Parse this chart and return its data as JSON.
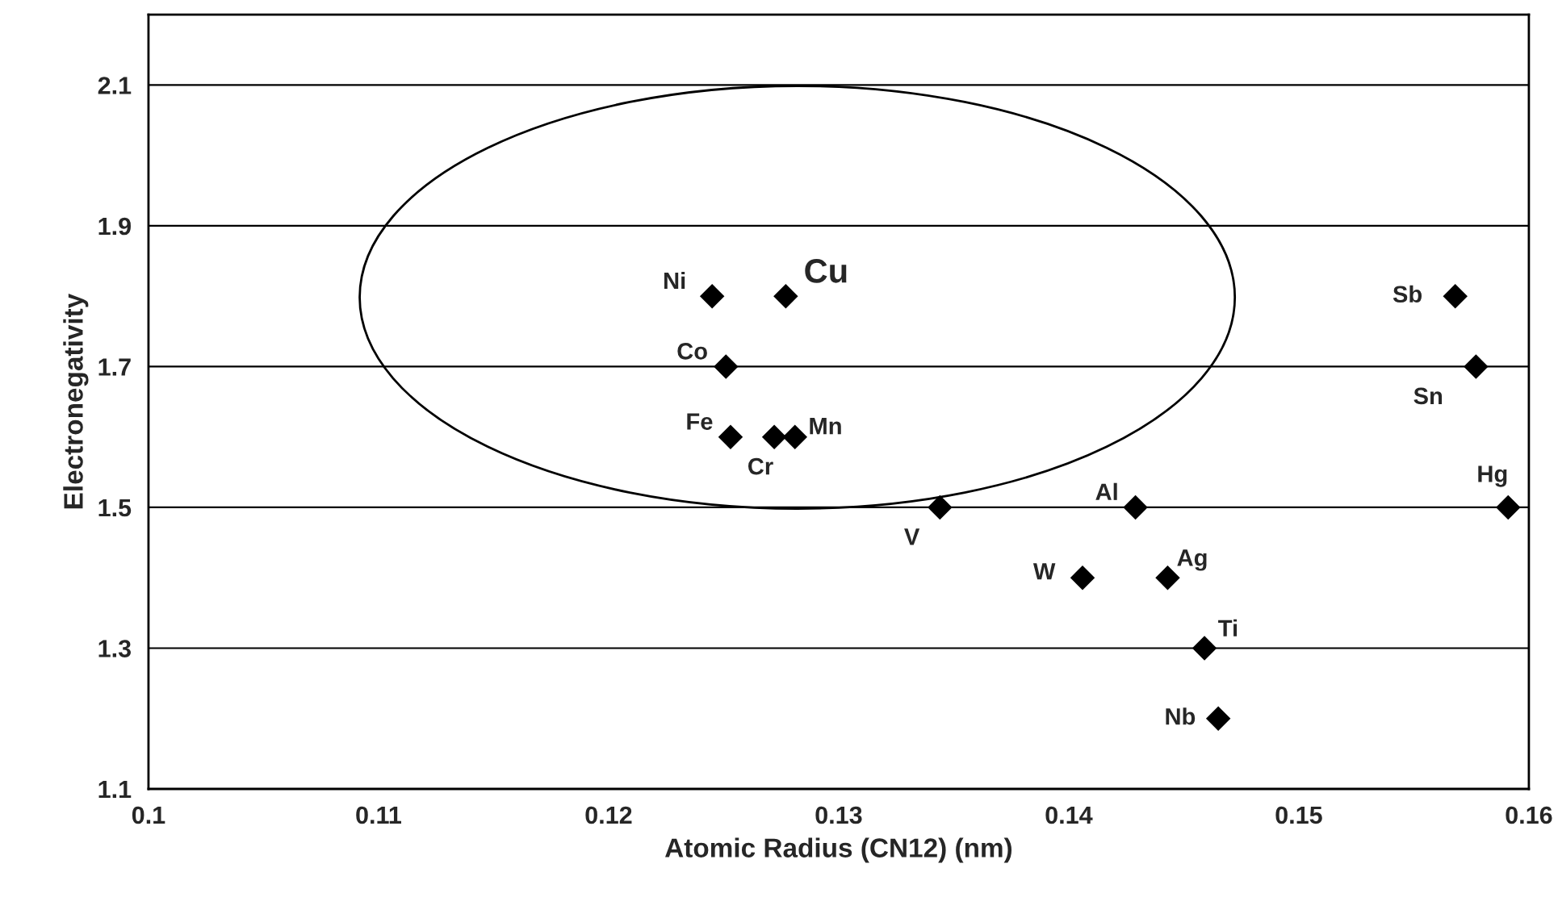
{
  "chart_data": {
    "type": "scatter",
    "xlabel": "Atomic Radius (CN12) (nm)",
    "ylabel": "Electronegativity",
    "x": [
      0.1245,
      0.1277,
      0.1251,
      0.1253,
      0.1272,
      0.1281,
      0.1344,
      0.1429,
      0.1406,
      0.1443,
      0.1459,
      0.1465,
      0.1568,
      0.1577,
      0.1591
    ],
    "series": [
      {
        "color": "#000000",
        "values": [
          1.8,
          1.8,
          1.7,
          1.6,
          1.6,
          1.6,
          1.5,
          1.5,
          1.4,
          1.4,
          1.3,
          1.2,
          1.8,
          1.7,
          1.5
        ]
      }
    ],
    "marker": "diamond",
    "grid": "y",
    "xlim": [
      0.1,
      0.16
    ],
    "xticks": [
      0.1,
      0.11,
      0.12,
      0.13,
      0.14,
      0.15,
      0.16
    ],
    "ylim": [
      1.1,
      2.2
    ],
    "yticks": [
      1.1,
      1.3,
      1.5,
      1.7,
      1.9,
      2.1
    ],
    "annotations": [
      {
        "text": "Ni",
        "x": 0.1245,
        "y": 1.8
      },
      {
        "text": "Cu",
        "x": 0.1277,
        "y": 1.8
      },
      {
        "text": "Co",
        "x": 0.1251,
        "y": 1.7
      },
      {
        "text": "Fe",
        "x": 0.1253,
        "y": 1.6
      },
      {
        "text": "Cr",
        "x": 0.1272,
        "y": 1.6
      },
      {
        "text": "Mn",
        "x": 0.1281,
        "y": 1.6
      },
      {
        "text": "V",
        "x": 0.1344,
        "y": 1.5
      },
      {
        "text": "Al",
        "x": 0.1429,
        "y": 1.5
      },
      {
        "text": "W",
        "x": 0.1406,
        "y": 1.4
      },
      {
        "text": "Ag",
        "x": 0.1443,
        "y": 1.4
      },
      {
        "text": "Ti",
        "x": 0.1459,
        "y": 1.3
      },
      {
        "text": "Nb",
        "x": 0.1465,
        "y": 1.2
      },
      {
        "text": "Sb",
        "x": 0.1568,
        "y": 1.8
      },
      {
        "text": "Sn",
        "x": 0.1577,
        "y": 1.7
      },
      {
        "text": "Hg",
        "x": 0.1591,
        "y": 1.5
      }
    ]
  }
}
